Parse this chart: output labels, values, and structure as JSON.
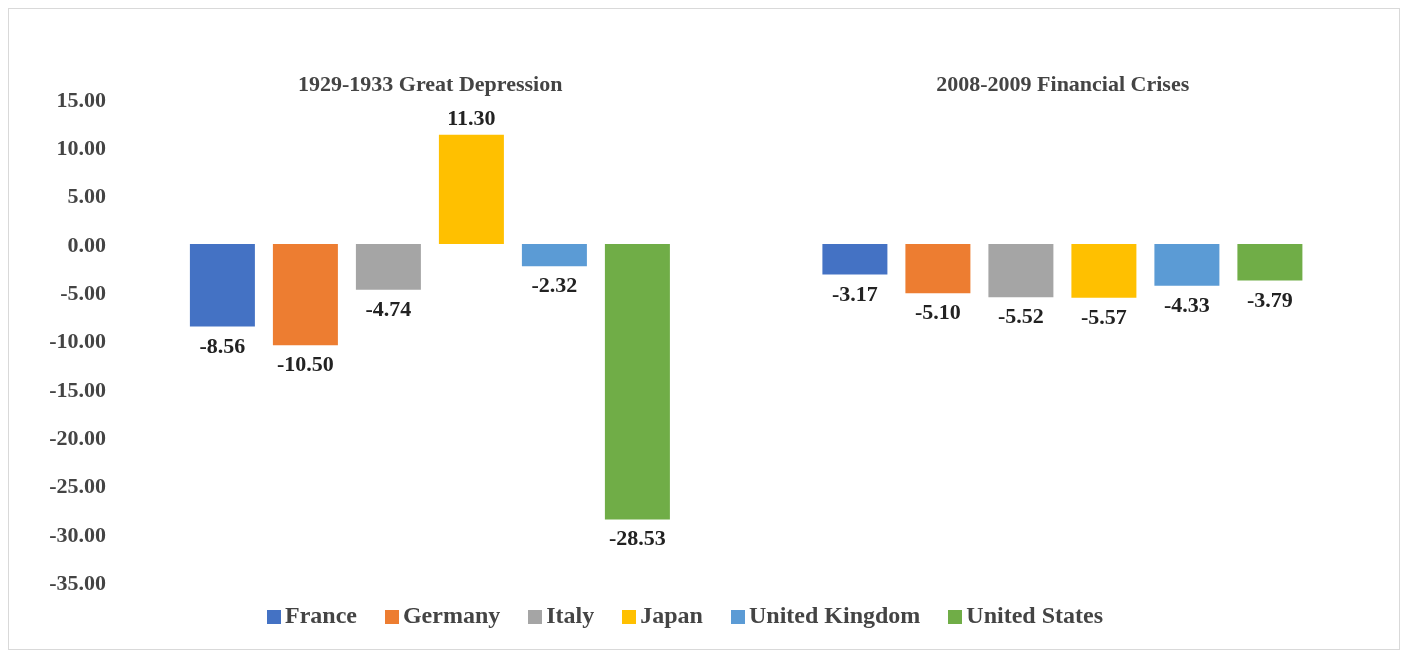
{
  "chart_data": {
    "type": "bar",
    "categories": [
      "1929-1933 Great Depression",
      "2008-2009 Financial Crises"
    ],
    "series": [
      {
        "name": "France",
        "color": "#4472c4",
        "values": [
          -8.56,
          -3.17
        ],
        "value_labels": [
          "-8.56",
          "-3.17"
        ]
      },
      {
        "name": "Germany",
        "color": "#ed7d31",
        "values": [
          -10.5,
          -5.1
        ],
        "value_labels": [
          "-10.50",
          "-5.10"
        ]
      },
      {
        "name": "Italy",
        "color": "#a5a5a5",
        "values": [
          -4.74,
          -5.52
        ],
        "value_labels": [
          "-4.74",
          "-5.52"
        ]
      },
      {
        "name": "Japan",
        "color": "#ffc000",
        "values": [
          11.3,
          -5.57
        ],
        "value_labels": [
          "11.30",
          "-5.57"
        ]
      },
      {
        "name": "United Kingdom",
        "color": "#5b9bd5",
        "values": [
          -2.32,
          -4.33
        ],
        "value_labels": [
          "-2.32",
          "-4.33"
        ]
      },
      {
        "name": "United States",
        "color": "#70ad47",
        "values": [
          -28.53,
          -3.79
        ],
        "value_labels": [
          "-28.53",
          "-3.79"
        ]
      }
    ],
    "ylim": [
      -35,
      15
    ],
    "yticks": [
      {
        "value": -35,
        "label": "-35.00"
      },
      {
        "value": -30,
        "label": "-30.00"
      },
      {
        "value": -25,
        "label": "-25.00"
      },
      {
        "value": -20,
        "label": "-20.00"
      },
      {
        "value": -15,
        "label": "-15.00"
      },
      {
        "value": -10,
        "label": "-10.00"
      },
      {
        "value": -5,
        "label": "-5.00"
      },
      {
        "value": 0,
        "label": "0.00"
      },
      {
        "value": 5,
        "label": "5.00"
      },
      {
        "value": 10,
        "label": "10.00"
      },
      {
        "value": 15,
        "label": "15.00"
      }
    ],
    "legend": "bottom"
  }
}
